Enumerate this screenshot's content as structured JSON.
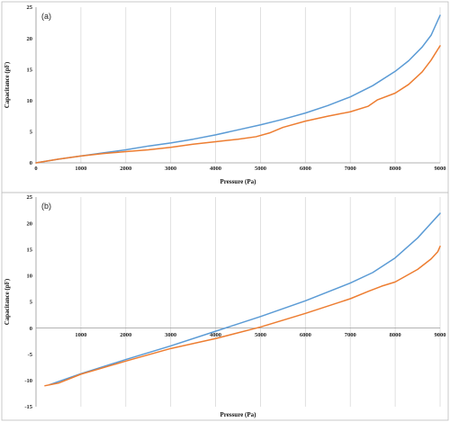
{
  "chart_data": [
    {
      "type": "line",
      "panel_label": "(a)",
      "xlabel": "Pressure (Pa)",
      "ylabel": "Capacitance (pF)",
      "xlim": [
        0,
        9000
      ],
      "ylim": [
        0,
        25
      ],
      "xticks": [
        0,
        1000,
        2000,
        3000,
        4000,
        5000,
        6000,
        7000,
        8000,
        9000
      ],
      "yticks": [
        0,
        5,
        10,
        15,
        20,
        25
      ],
      "grid": "vertical",
      "series": [
        {
          "color": "#5b9bd5",
          "points": [
            [
              0,
              0
            ],
            [
              500,
              0.6
            ],
            [
              1000,
              1.1
            ],
            [
              1500,
              1.6
            ],
            [
              2000,
              2.1
            ],
            [
              2500,
              2.7
            ],
            [
              3000,
              3.2
            ],
            [
              3500,
              3.8
            ],
            [
              4000,
              4.5
            ],
            [
              4500,
              5.3
            ],
            [
              5000,
              6.1
            ],
            [
              5500,
              7.0
            ],
            [
              6000,
              8.0
            ],
            [
              6500,
              9.2
            ],
            [
              7000,
              10.6
            ],
            [
              7500,
              12.4
            ],
            [
              8000,
              14.7
            ],
            [
              8300,
              16.4
            ],
            [
              8600,
              18.6
            ],
            [
              8800,
              20.5
            ],
            [
              9000,
              23.7
            ]
          ]
        },
        {
          "color": "#ed7d31",
          "points": [
            [
              0,
              0
            ],
            [
              500,
              0.6
            ],
            [
              1000,
              1.1
            ],
            [
              1500,
              1.5
            ],
            [
              2000,
              1.8
            ],
            [
              2500,
              2.1
            ],
            [
              3000,
              2.5
            ],
            [
              3500,
              3.0
            ],
            [
              4000,
              3.4
            ],
            [
              4500,
              3.8
            ],
            [
              4900,
              4.2
            ],
            [
              5200,
              4.8
            ],
            [
              5500,
              5.7
            ],
            [
              6000,
              6.7
            ],
            [
              6500,
              7.5
            ],
            [
              7000,
              8.2
            ],
            [
              7400,
              9.1
            ],
            [
              7600,
              10.1
            ],
            [
              8000,
              11.2
            ],
            [
              8300,
              12.6
            ],
            [
              8600,
              14.6
            ],
            [
              8800,
              16.5
            ],
            [
              9000,
              18.8
            ]
          ]
        }
      ]
    },
    {
      "type": "line",
      "panel_label": "(b)",
      "xlabel": "Pressure (Pa)",
      "ylabel": "Capacitance (pF)",
      "xlim": [
        0,
        9000
      ],
      "ylim": [
        -15,
        25
      ],
      "xticks": [
        1000,
        2000,
        3000,
        4000,
        5000,
        6000,
        7000,
        8000,
        9000
      ],
      "yticks": [
        -15,
        -10,
        -5,
        0,
        5,
        10,
        15,
        20,
        25
      ],
      "grid": "vertical",
      "series": [
        {
          "color": "#5b9bd5",
          "points": [
            [
              300,
              -10.8
            ],
            [
              1000,
              -8.7
            ],
            [
              2000,
              -6.0
            ],
            [
              3000,
              -3.4
            ],
            [
              4000,
              -0.6
            ],
            [
              5000,
              2.2
            ],
            [
              6000,
              5.2
            ],
            [
              7000,
              8.6
            ],
            [
              7500,
              10.6
            ],
            [
              8000,
              13.4
            ],
            [
              8500,
              17.2
            ],
            [
              9000,
              21.9
            ]
          ]
        },
        {
          "color": "#ed7d31",
          "points": [
            [
              200,
              -11.0
            ],
            [
              500,
              -10.5
            ],
            [
              1000,
              -8.8
            ],
            [
              2000,
              -6.3
            ],
            [
              3000,
              -3.9
            ],
            [
              4000,
              -2.0
            ],
            [
              5000,
              0.2
            ],
            [
              6000,
              2.8
            ],
            [
              7000,
              5.6
            ],
            [
              7400,
              7.0
            ],
            [
              7700,
              8.0
            ],
            [
              8000,
              8.8
            ],
            [
              8500,
              11.2
            ],
            [
              8800,
              13.2
            ],
            [
              8950,
              14.6
            ],
            [
              9000,
              15.6
            ]
          ]
        }
      ]
    }
  ]
}
